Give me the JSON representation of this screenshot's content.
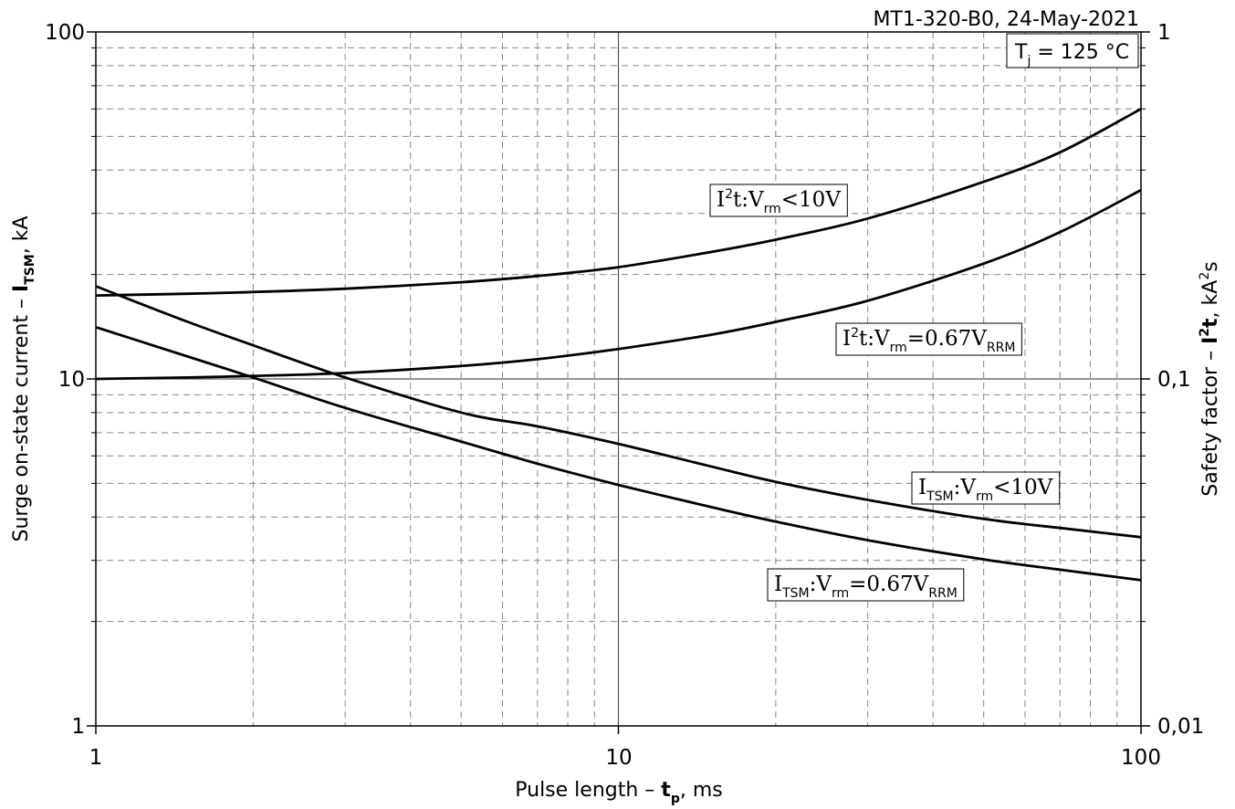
{
  "chart_data": {
    "type": "line",
    "header": "MT1-320-B0, 24-May-2021",
    "condition": {
      "symbol": "T",
      "sub": "j",
      "rest": " = 125 °C"
    },
    "x_axis": {
      "scale": "log",
      "range": [
        1,
        100
      ],
      "ticks": [
        "1",
        "10",
        "100"
      ],
      "label": {
        "pre": "Pulse length – ",
        "bold": "t",
        "sub": "p",
        "post": ", ms"
      }
    },
    "y_axis_left": {
      "scale": "log",
      "range": [
        1,
        100
      ],
      "ticks": [
        "1",
        "10",
        "100"
      ],
      "label": {
        "pre": "Surge on-state current – ",
        "bold": "I",
        "sub": "TSM",
        "post": ", kA"
      }
    },
    "y_axis_right": {
      "scale": "log",
      "range": [
        0.01,
        1
      ],
      "ticks": [
        "0,01",
        "0,1",
        "1"
      ],
      "label": {
        "pre": "Safety factor – ",
        "bold": "I",
        "sup": "2",
        "bold2": "t",
        "post": ", kA",
        "sup2": "2",
        "post2": "s"
      }
    },
    "grid": {
      "major": "solid",
      "minor": "dashed"
    },
    "series": [
      {
        "axis": "right",
        "label_parts": [
          "I",
          "2",
          "t:V",
          "rm",
          "<10V"
        ],
        "label_style": [
          "n",
          "sup",
          "n",
          "sub",
          "n"
        ],
        "x": [
          1,
          1.5,
          2,
          3,
          5,
          7,
          10,
          15,
          20,
          30,
          50,
          70,
          100
        ],
        "y": [
          0.174,
          0.176,
          0.178,
          0.182,
          0.19,
          0.198,
          0.21,
          0.232,
          0.252,
          0.29,
          0.37,
          0.45,
          0.6
        ]
      },
      {
        "axis": "right",
        "label_parts": [
          "I",
          "2",
          "t:V",
          "rm",
          "=0.67V",
          "RRM"
        ],
        "label_style": [
          "n",
          "sup",
          "n",
          "sub",
          "n",
          "sub"
        ],
        "x": [
          1,
          1.5,
          2,
          3,
          5,
          7,
          10,
          15,
          20,
          30,
          50,
          70,
          100
        ],
        "y": [
          0.1,
          0.101,
          0.102,
          0.104,
          0.109,
          0.114,
          0.122,
          0.134,
          0.146,
          0.168,
          0.215,
          0.265,
          0.35
        ]
      },
      {
        "axis": "left",
        "label_parts": [
          "I",
          "TSM",
          ":V",
          "rm",
          "<10V"
        ],
        "label_style": [
          "n",
          "sub",
          "n",
          "sub",
          "n"
        ],
        "x": [
          1,
          1.5,
          2,
          3,
          5,
          7,
          10,
          15,
          20,
          30,
          50,
          70,
          100
        ],
        "y": [
          18.5,
          14.6,
          12.5,
          10.1,
          8.0,
          7.3,
          6.5,
          5.6,
          5.05,
          4.48,
          3.95,
          3.72,
          3.5
        ]
      },
      {
        "axis": "left",
        "label_parts": [
          "I",
          "TSM",
          ":V",
          "rm",
          "=0.67V",
          "RRM"
        ],
        "label_style": [
          "n",
          "sub",
          "n",
          "sub",
          "n",
          "sub"
        ],
        "x": [
          1,
          1.5,
          2,
          3,
          5,
          7,
          10,
          15,
          20,
          30,
          50,
          70,
          100
        ],
        "y": [
          14.1,
          11.6,
          10.1,
          8.25,
          6.6,
          5.7,
          4.95,
          4.28,
          3.88,
          3.43,
          3.02,
          2.82,
          2.63
        ]
      }
    ]
  }
}
